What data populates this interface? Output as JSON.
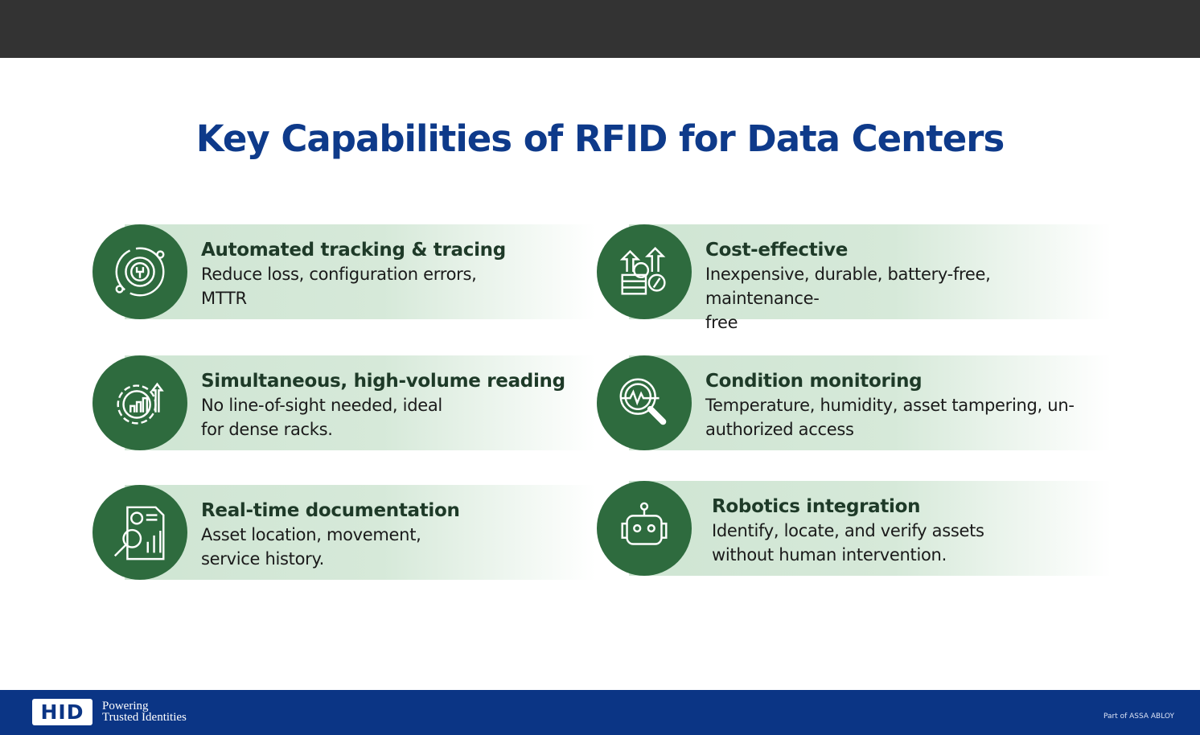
{
  "title": "Key Capabilities of RFID for Data Centers",
  "cards": [
    {
      "title": "Automated tracking & tracing",
      "desc": "Reduce loss, configuration errors,",
      "desc2": "MTTR",
      "icon": "gear-wrench-icon"
    },
    {
      "title": "Cost-effective",
      "desc": "Inexpensive, durable, battery-free, maintenance-",
      "desc2": "free",
      "icon": "money-growth-icon"
    },
    {
      "title": "Simultaneous, high-volume reading",
      "desc": "No line-of-sight needed, ideal",
      "desc2": "for dense racks.",
      "icon": "gear-chart-icon"
    },
    {
      "title": "Condition monitoring",
      "desc": "Temperature, humidity, asset tampering, un-",
      "desc2": "authorized access",
      "icon": "magnifier-pulse-icon"
    },
    {
      "title": "Real-time documentation",
      "desc": "Asset location, movement,",
      "desc2": "service history.",
      "icon": "report-magnifier-icon"
    },
    {
      "title": "Robotics integration",
      "desc": "Identify, locate, and verify assets",
      "desc2": "without human intervention.",
      "icon": "robot-icon"
    }
  ],
  "footer": {
    "logo": "HID",
    "tagline1": "Powering",
    "tagline2": "Trusted Identities",
    "assa": "Part of ASSA ABLOY"
  },
  "colors": {
    "title": "#0e3a8a",
    "circle": "#2e6b3e",
    "band": "#cfe5d3",
    "footer": "#0b3585",
    "topbar": "#333333"
  }
}
